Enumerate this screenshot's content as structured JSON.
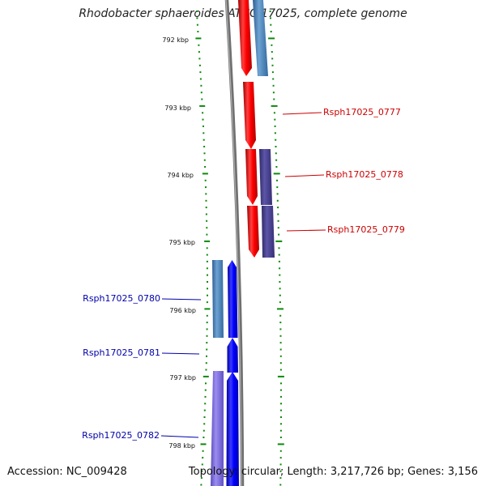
{
  "title": "Rhodobacter sphaeroides ATCC 17025, complete genome",
  "footer": {
    "accession": "Accession: NC_009428",
    "topology": "Topology: circular; Length: 3,217,726 bp; Genes: 3,156"
  },
  "colors": {
    "forward_gene": "#ff0000",
    "reverse_gene": "#0000ff",
    "backbone": "#808080",
    "tick": "#0b8a0b",
    "steelblue_feature": "#4a86c0",
    "violet_feature": "#47408e",
    "lavender_feature": "#7c6cd8"
  },
  "scale": {
    "unit": "kbp",
    "major_ticks": [
      "792 kbp",
      "793 kbp",
      "794 kbp",
      "795 kbp",
      "796 kbp",
      "797 kbp",
      "798 kbp"
    ]
  },
  "gene_labels": [
    {
      "id": "Rsph17025_0777",
      "text": "Rsph17025_0777",
      "strand": "forward"
    },
    {
      "id": "Rsph17025_0778",
      "text": "Rsph17025_0778",
      "strand": "forward"
    },
    {
      "id": "Rsph17025_0779",
      "text": "Rsph17025_0779",
      "strand": "forward"
    },
    {
      "id": "Rsph17025_0780",
      "text": "Rsph17025_0780",
      "strand": "reverse"
    },
    {
      "id": "Rsph17025_0781",
      "text": "Rsph17025_0781",
      "strand": "reverse"
    },
    {
      "id": "Rsph17025_0782",
      "text": "Rsph17025_0782",
      "strand": "reverse"
    }
  ]
}
